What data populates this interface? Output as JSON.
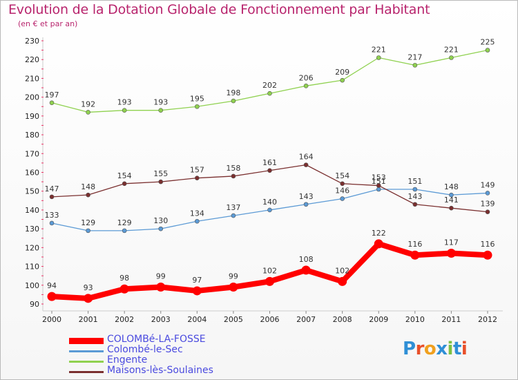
{
  "title": "Evolution de la Dotation Globale de Fonctionnement par Habitant",
  "subtitle": "(en € et par an)",
  "logo_text": "Proxiti",
  "chart_data": {
    "type": "line",
    "title": "Evolution de la Dotation Globale de Fonctionnement par Habitant",
    "subtitle": "(en € et par an)",
    "x": [
      "2000",
      "2001",
      "2002",
      "2003",
      "2004",
      "2005",
      "2006",
      "2007",
      "2008",
      "2009",
      "2010",
      "2011",
      "2012"
    ],
    "ylim": [
      90,
      230
    ],
    "yticks": [
      90,
      100,
      110,
      120,
      130,
      140,
      150,
      160,
      170,
      180,
      190,
      200,
      210,
      220,
      230
    ],
    "grid": false,
    "legend_position": "bottom-left",
    "series": [
      {
        "name": "COLOMBé-LA-FOSSE",
        "color": "#ff0000",
        "values": [
          94,
          93,
          98,
          99,
          97,
          99,
          102,
          108,
          102,
          122,
          116,
          117,
          116
        ]
      },
      {
        "name": "Colombé-le-Sec",
        "color": "#5b9ad5",
        "values": [
          133,
          129,
          129,
          130,
          134,
          137,
          140,
          143,
          146,
          151,
          151,
          148,
          149
        ]
      },
      {
        "name": "Engente",
        "color": "#8fd14f",
        "values": [
          197,
          192,
          193,
          193,
          195,
          198,
          202,
          206,
          209,
          221,
          217,
          221,
          225
        ]
      },
      {
        "name": "Maisons-lès-Soulaines",
        "color": "#7a2f2f",
        "values": [
          147,
          148,
          154,
          155,
          157,
          158,
          161,
          164,
          154,
          153,
          143,
          141,
          139
        ]
      }
    ]
  }
}
